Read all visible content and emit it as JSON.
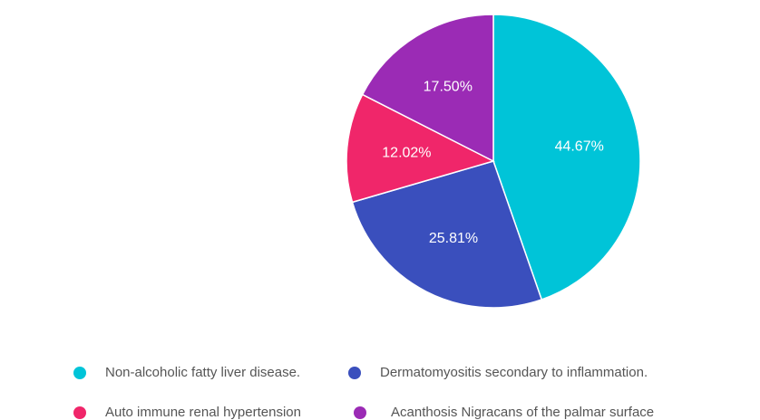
{
  "chart_data": {
    "type": "pie",
    "title": "",
    "slices": [
      {
        "label": "Non-alcoholic fatty liver disease.",
        "value": 44.67,
        "display": "44.67%",
        "color": "#00c4d8"
      },
      {
        "label": "Dermatomyositis secondary to inflammation.",
        "value": 25.81,
        "display": "25.81%",
        "color": "#3a4fbd"
      },
      {
        "label": "Auto immune renal hypertension",
        "value": 12.02,
        "display": "12.02%",
        "color": "#f0266a"
      },
      {
        "label": "Acanthosis Nigracans of the palmar surface",
        "value": 17.5,
        "display": "17.50%",
        "color": "#9b2bb5"
      }
    ],
    "start_angle": "12 o'clock",
    "direction": "clockwise",
    "legend_position": "bottom"
  }
}
